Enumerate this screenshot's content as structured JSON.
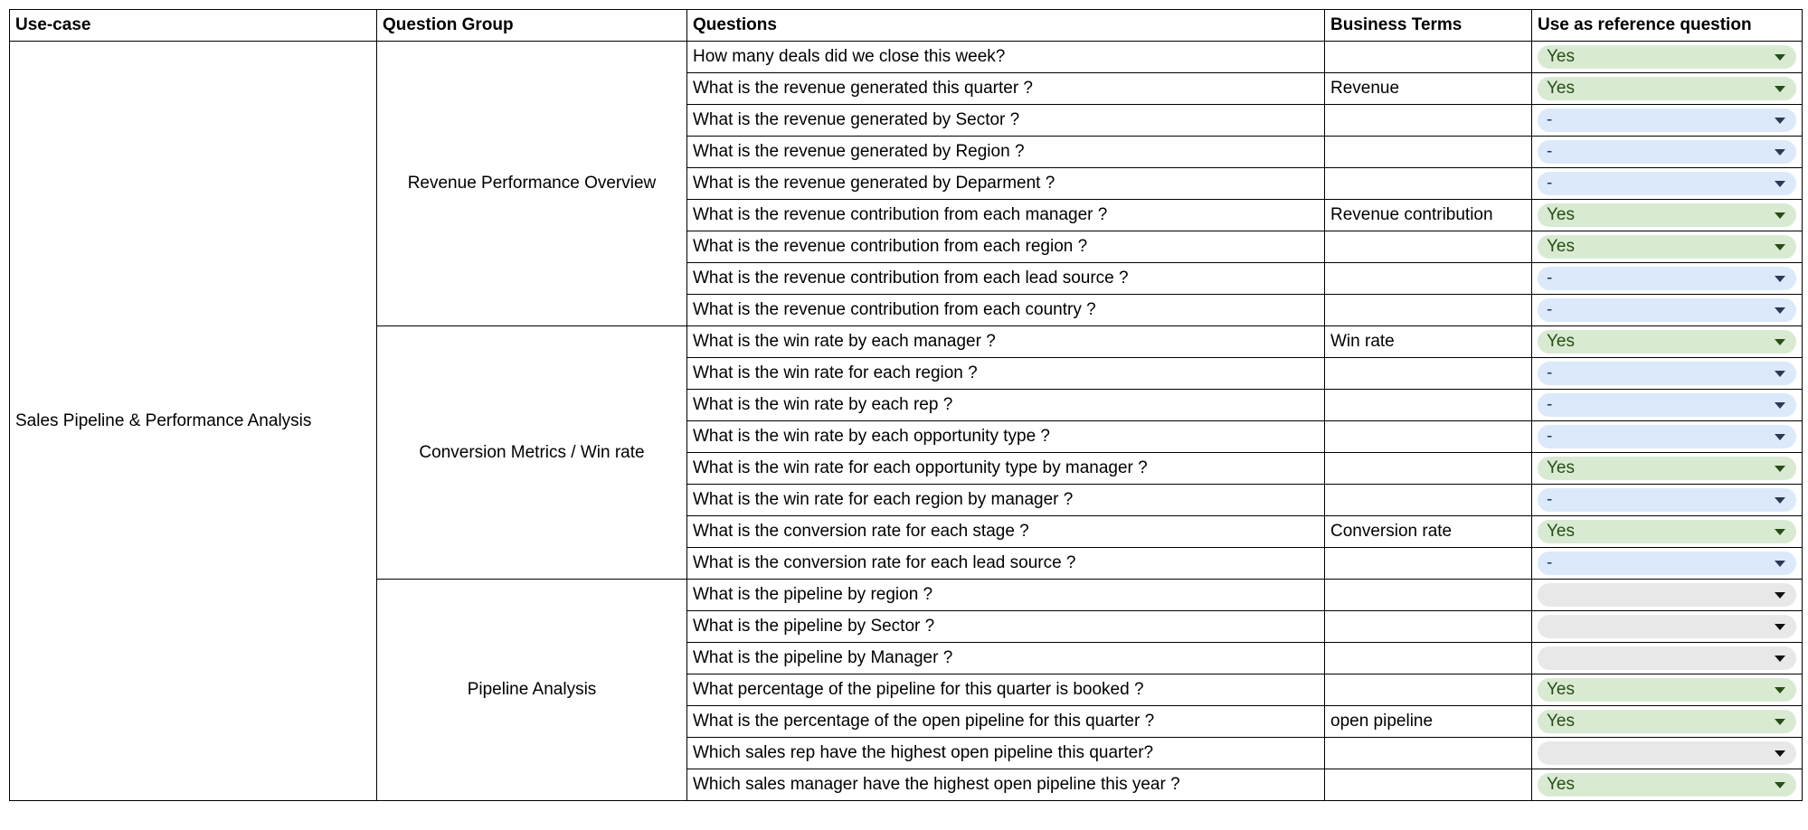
{
  "headers": [
    "Use-case",
    "Question Group",
    "Questions",
    "Business Terms",
    "Use as reference question"
  ],
  "use_case": "Sales Pipeline & Performance Analysis",
  "groups": [
    {
      "name": "Revenue Performance Overview",
      "rows": [
        {
          "q": "How many deals did we close this week?",
          "term": "",
          "ref": "Yes"
        },
        {
          "q": "What is the revenue generated this quarter ?",
          "term": "Revenue",
          "ref": "Yes"
        },
        {
          "q": "What is the revenue generated by Sector ?",
          "term": "",
          "ref": "-"
        },
        {
          "q": "What is the revenue generated by Region ?",
          "term": "",
          "ref": "-"
        },
        {
          "q": "What is the revenue generated by Deparment ?",
          "term": "",
          "ref": "-"
        },
        {
          "q": "What is the revenue contribution from each manager ?",
          "term": "Revenue contribution",
          "ref": "Yes"
        },
        {
          "q": "What is the revenue contribution from each region ?",
          "term": "",
          "ref": "Yes"
        },
        {
          "q": "What is the revenue contribution from each lead source ?",
          "term": "",
          "ref": "-"
        },
        {
          "q": "What is the revenue contribution from each country ?",
          "term": "",
          "ref": "-"
        }
      ]
    },
    {
      "name": "Conversion Metrics / Win rate",
      "rows": [
        {
          "q": "What is the win rate by each manager  ?",
          "term": "Win rate",
          "ref": "Yes"
        },
        {
          "q": "What is the win rate for each region ?",
          "term": "",
          "ref": "-"
        },
        {
          "q": "What is the win rate by each rep ?",
          "term": "",
          "ref": "-"
        },
        {
          "q": "What is the win rate by each opportunity type ?",
          "term": "",
          "ref": "-"
        },
        {
          "q": "What is the win rate for each opportunity type by manager ?",
          "term": "",
          "ref": "Yes"
        },
        {
          "q": "What is the win rate for each region by manager ?",
          "term": "",
          "ref": "-"
        },
        {
          "q": "What is the conversion rate for each stage ?",
          "term": "Conversion rate",
          "ref": "Yes"
        },
        {
          "q": "What is the conversion rate for each lead source ?",
          "term": "",
          "ref": "-"
        }
      ]
    },
    {
      "name": "Pipeline Analysis",
      "rows": [
        {
          "q": "What is the pipeline by region ?",
          "term": "",
          "ref": ""
        },
        {
          "q": "What is the pipeline by Sector ?",
          "term": "",
          "ref": ""
        },
        {
          "q": "What is the pipeline by Manager ?",
          "term": "",
          "ref": ""
        },
        {
          "q": "What percentage of the pipeline for this quarter is booked ?",
          "term": "",
          "ref": "Yes"
        },
        {
          "q": "What is the percentage of the open pipeline for this quarter ?",
          "term": "open pipeline",
          "ref": "Yes"
        },
        {
          "q": "Which sales rep have the highest open pipeline this quarter?",
          "term": "",
          "ref": ""
        },
        {
          "q": "Which sales manager have the highest open pipeline this year ?",
          "term": "",
          "ref": "Yes"
        }
      ]
    }
  ],
  "colors": {
    "yes_bg": "#d9ead3",
    "dash_bg": "#dbe9fb",
    "empty_bg": "#e8e8e8"
  }
}
